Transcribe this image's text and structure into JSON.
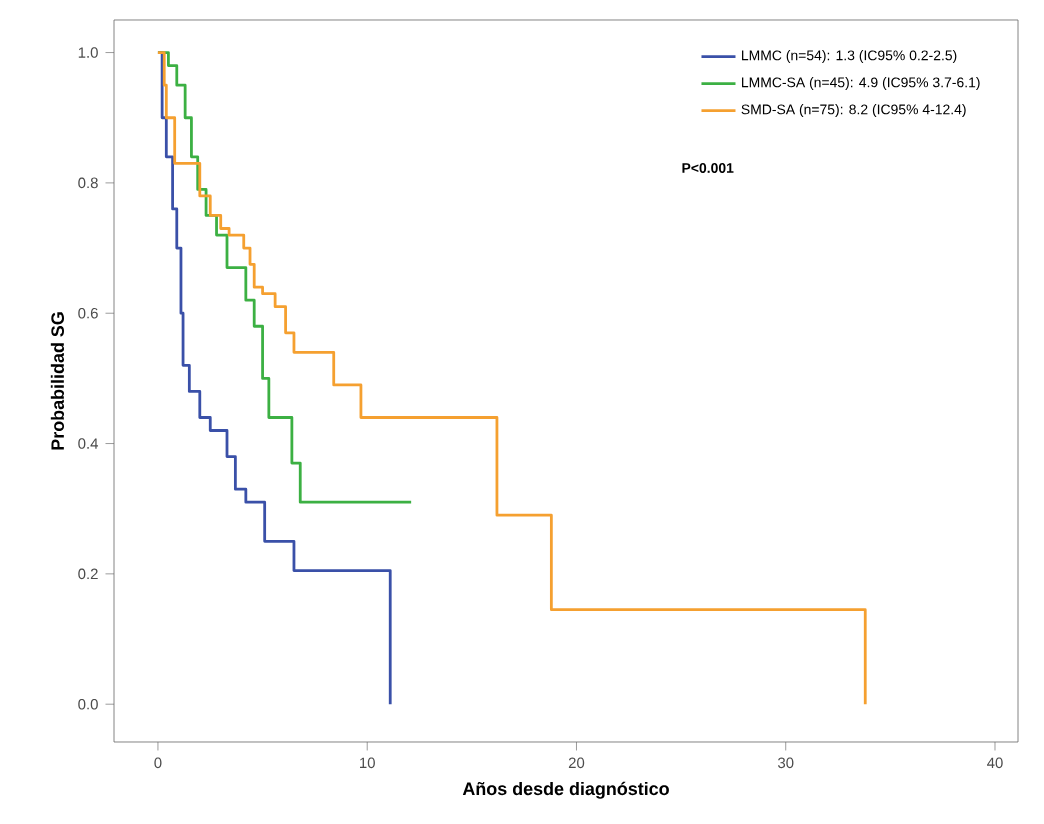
{
  "chart_data": {
    "type": "step",
    "xlabel": "Años desde diagnóstico",
    "ylabel": "Probabilidad SG",
    "xlim": [
      -2.1,
      41.1
    ],
    "ylim": [
      -0.058,
      1.05
    ],
    "xticks": [
      0,
      10,
      20,
      30,
      40
    ],
    "yticks": [
      {
        "value": 0,
        "label": "0.0"
      },
      {
        "value": 0.2,
        "label": "0.2"
      },
      {
        "value": 0.4,
        "label": "0.4"
      },
      {
        "value": 0.6,
        "label": "0.6"
      },
      {
        "value": 0.8,
        "label": "0.8"
      },
      {
        "value": 1.0,
        "label": "1.0"
      }
    ],
    "grid": false,
    "legend": "top right",
    "annotations": [
      "**P<0.001**"
    ],
    "series": [
      {
        "name": "LMMC (n=54): 1.3 (IC95% 0.2-2.5)",
        "color": "#3a50a8",
        "x": [
          0,
          0.2,
          0.4,
          0.7,
          0.9,
          1.1,
          1.2,
          1.5,
          2.0,
          2.5,
          3.3,
          3.7,
          4.2,
          5.1,
          6.5,
          11.1
        ],
        "values": [
          1.0,
          0.9,
          0.84,
          0.76,
          0.7,
          0.6,
          0.52,
          0.48,
          0.44,
          0.42,
          0.38,
          0.33,
          0.31,
          0.25,
          0.205,
          0.0
        ]
      },
      {
        "name": "LMMC-SA (n=45): 4.9 (IC95% 3.7-6.1)",
        "color": "#3cb043",
        "x": [
          0,
          0.5,
          0.9,
          1.3,
          1.6,
          1.9,
          2.3,
          2.8,
          3.3,
          4.2,
          4.6,
          5.0,
          5.3,
          6.4,
          6.8,
          12.1
        ],
        "values": [
          1.0,
          0.98,
          0.95,
          0.9,
          0.84,
          0.79,
          0.75,
          0.72,
          0.67,
          0.62,
          0.58,
          0.5,
          0.44,
          0.37,
          0.31,
          0.31
        ]
      },
      {
        "name": "SMD-SA (n=75): 8.2 (IC95% 4-12.4)",
        "color": "#f5a030",
        "x": [
          0,
          0.3,
          0.4,
          0.8,
          2.0,
          2.5,
          3.0,
          3.4,
          4.1,
          4.4,
          4.6,
          5.0,
          5.6,
          6.1,
          6.5,
          8.4,
          9.7,
          16.2,
          18.8,
          33.8
        ],
        "values": [
          1.0,
          0.95,
          0.9,
          0.83,
          0.78,
          0.75,
          0.73,
          0.72,
          0.7,
          0.675,
          0.64,
          0.63,
          0.61,
          0.57,
          0.54,
          0.49,
          0.44,
          0.29,
          0.145,
          0.0
        ]
      }
    ]
  }
}
